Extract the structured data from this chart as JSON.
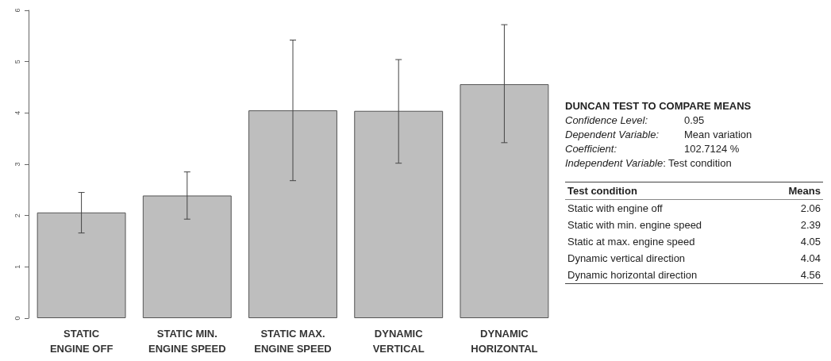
{
  "chart_data": {
    "type": "bar",
    "categories": [
      "STATIC\nENGINE OFF",
      "STATIC MIN.\nENGINE SPEED",
      "STATIC MAX.\nENGINE SPEED",
      "DYNAMIC\nVERTICAL",
      "DYNAMIC\nHORIZONTAL"
    ],
    "values": [
      2.06,
      2.39,
      4.05,
      4.04,
      4.56
    ],
    "errors": [
      [
        1.66,
        2.45
      ],
      [
        1.93,
        2.85
      ],
      [
        2.68,
        5.42
      ],
      [
        3.02,
        5.04
      ],
      [
        3.42,
        5.72
      ]
    ],
    "color": "#bebebe",
    "ylim": [
      0,
      6
    ],
    "yticks": [
      0,
      1,
      2,
      3,
      4,
      5,
      6
    ],
    "grid": false,
    "annotations": [
      "DUNCAN TEST TO COMPARE MEANS",
      "Confidence Level:",
      "0.95",
      "Dependent Variable:",
      "Mean variation",
      "Coefficient:",
      "102.7124 %",
      "Independent Variable",
      ": Test condition",
      "Test condition",
      "Means",
      "Static with engine off",
      "2.06",
      "Static with min. engine speed",
      "2.39",
      "Static at max. engine speed",
      "4.05",
      "Dynamic vertical direction",
      "4.04",
      "Dynamic horizontal direction",
      "4.56"
    ]
  }
}
